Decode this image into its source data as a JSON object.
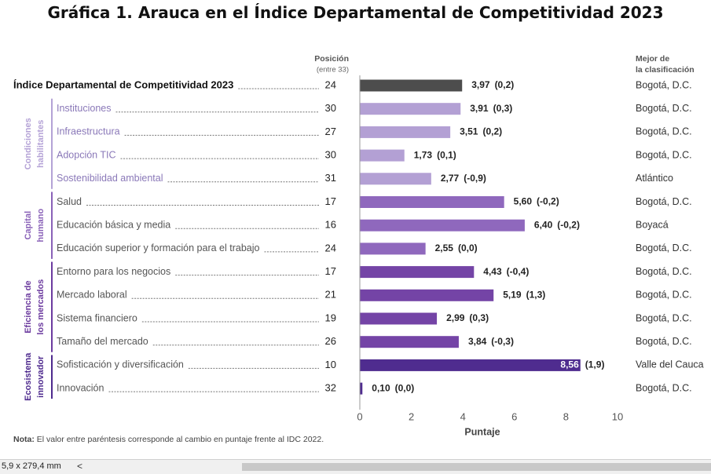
{
  "page": {
    "title": "Gráfica 1. Arauca en el Índice Departamental de Competitividad 2023",
    "status_dims": "5,9 x 279,4 mm",
    "status_arrow": "<"
  },
  "chart_data": {
    "type": "bar",
    "orientation": "horizontal",
    "title": "Gráfica 1. Arauca en el Índice Departamental de Competitividad 2023",
    "xlabel": "Puntaje",
    "xlim": [
      0,
      10
    ],
    "xticks": [
      0,
      2,
      4,
      6,
      8,
      10
    ],
    "header_position": "Posición",
    "header_position_sub": "(entre 33)",
    "header_best": "Mejor de\nla clasificación",
    "note_label": "Nota:",
    "note_text": " El valor entre paréntesis corresponde al cambio en puntaje frente al IDC 2022.",
    "groups": [
      {
        "name": "Condiciones habilitantes",
        "color": "#b4a2d6",
        "rows": [
          1,
          4
        ]
      },
      {
        "name": "Capital humano",
        "color": "#8a62b8",
        "rows": [
          5,
          7
        ]
      },
      {
        "name": "Eficiencia de los mercados",
        "color": "#6c3b9f",
        "rows": [
          8,
          11
        ]
      },
      {
        "name": "Ecosistema innovador",
        "color": "#4e2a8e",
        "rows": [
          12,
          13
        ]
      }
    ],
    "rows": [
      {
        "label": "Índice Departamental de Competitividad 2023",
        "position": 24,
        "score": 3.97,
        "change": 0.2,
        "score_text": "3,97",
        "change_text": "(0,2)",
        "best": "Bogotá, D.C.",
        "color": "#4d4d4d",
        "bold": true
      },
      {
        "label": "Instituciones",
        "position": 30,
        "score": 3.91,
        "change": 0.3,
        "score_text": "3,91",
        "change_text": "(0,3)",
        "best": "Bogotá, D.C.",
        "color": "#b3a0d4"
      },
      {
        "label": "Infraestructura",
        "position": 27,
        "score": 3.51,
        "change": 0.2,
        "score_text": "3,51",
        "change_text": "(0,2)",
        "best": "Bogotá, D.C.",
        "color": "#b3a0d4"
      },
      {
        "label": "Adopción TIC",
        "position": 30,
        "score": 1.73,
        "change": 0.1,
        "score_text": "1,73",
        "change_text": "(0,1)",
        "best": "Bogotá, D.C.",
        "color": "#b3a0d4"
      },
      {
        "label": "Sostenibilidad ambiental",
        "position": 31,
        "score": 2.77,
        "change": -0.9,
        "score_text": "2,77",
        "change_text": "(-0,9)",
        "best": "Atlántico",
        "color": "#b3a0d4"
      },
      {
        "label": "Salud",
        "position": 17,
        "score": 5.6,
        "change": -0.2,
        "score_text": "5,60",
        "change_text": "(-0,2)",
        "best": "Bogotá, D.C.",
        "color": "#8f68bd"
      },
      {
        "label": "Educación básica y media",
        "position": 16,
        "score": 6.4,
        "change": -0.2,
        "score_text": "6,40",
        "change_text": "(-0,2)",
        "best": "Boyacá",
        "color": "#8f68bd"
      },
      {
        "label": "Educación superior y formación para el trabajo",
        "position": 24,
        "score": 2.55,
        "change": 0.0,
        "score_text": "2,55",
        "change_text": "(0,0)",
        "best": "Bogotá, D.C.",
        "color": "#8f68bd"
      },
      {
        "label": "Entorno para los negocios",
        "position": 17,
        "score": 4.43,
        "change": -0.4,
        "score_text": "4,43",
        "change_text": "(-0,4)",
        "best": "Bogotá, D.C.",
        "color": "#7444a6"
      },
      {
        "label": "Mercado laboral",
        "position": 21,
        "score": 5.19,
        "change": 1.3,
        "score_text": "5,19",
        "change_text": "(1,3)",
        "best": "Bogotá, D.C.",
        "color": "#7444a6"
      },
      {
        "label": "Sistema financiero",
        "position": 19,
        "score": 2.99,
        "change": 0.3,
        "score_text": "2,99",
        "change_text": "(0,3)",
        "best": "Bogotá, D.C.",
        "color": "#7444a6"
      },
      {
        "label": "Tamaño del mercado",
        "position": 26,
        "score": 3.84,
        "change": -0.3,
        "score_text": "3,84",
        "change_text": "(-0,3)",
        "best": "Bogotá, D.C.",
        "color": "#7444a6"
      },
      {
        "label": "Sofisticación y diversificación",
        "position": 10,
        "score": 8.56,
        "change": 1.9,
        "score_text": "8,56",
        "change_text": "(1,9)",
        "best": "Valle del Cauca",
        "color": "#4f2c8f",
        "label_inside": true
      },
      {
        "label": "Innovación",
        "position": 32,
        "score": 0.1,
        "change": 0.0,
        "score_text": "0,10",
        "change_text": "(0,0)",
        "best": "Bogotá, D.C.",
        "color": "#4f2c8f"
      }
    ]
  }
}
